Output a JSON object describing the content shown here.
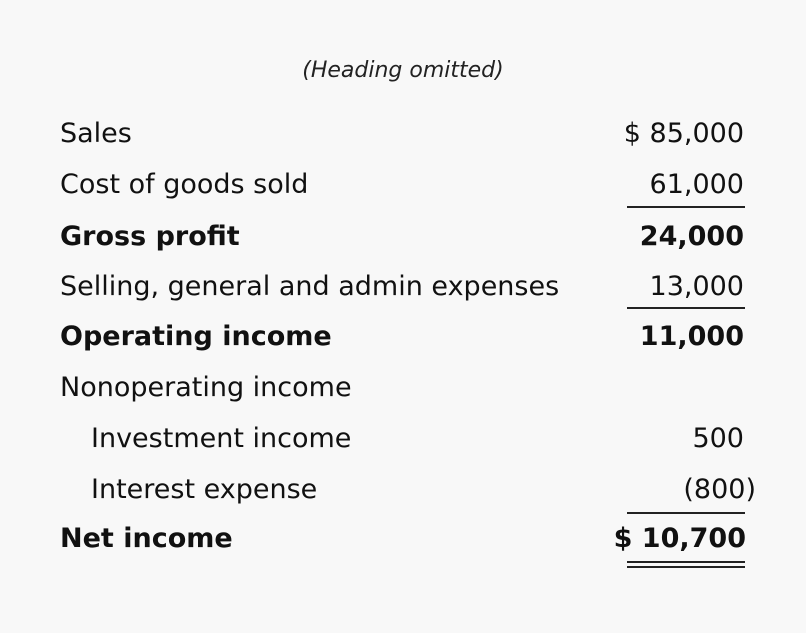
{
  "heading": "(Heading omitted)",
  "rows": [
    {
      "label": "Sales",
      "amount": "$ 85,000"
    },
    {
      "label": "Cost of goods sold",
      "amount": "61,000"
    },
    {
      "label": "Gross profit",
      "amount": "24,000"
    },
    {
      "label": "Selling, general and admin expenses",
      "amount": "13,000"
    },
    {
      "label": "Operating income",
      "amount": "11,000"
    },
    {
      "label": "Nonoperating income",
      "amount": ""
    },
    {
      "label": "Investment income",
      "amount": "500"
    },
    {
      "label": "Interest expense",
      "amount": "(800)"
    },
    {
      "label": "Net income",
      "amount": "$ 10,700"
    }
  ]
}
